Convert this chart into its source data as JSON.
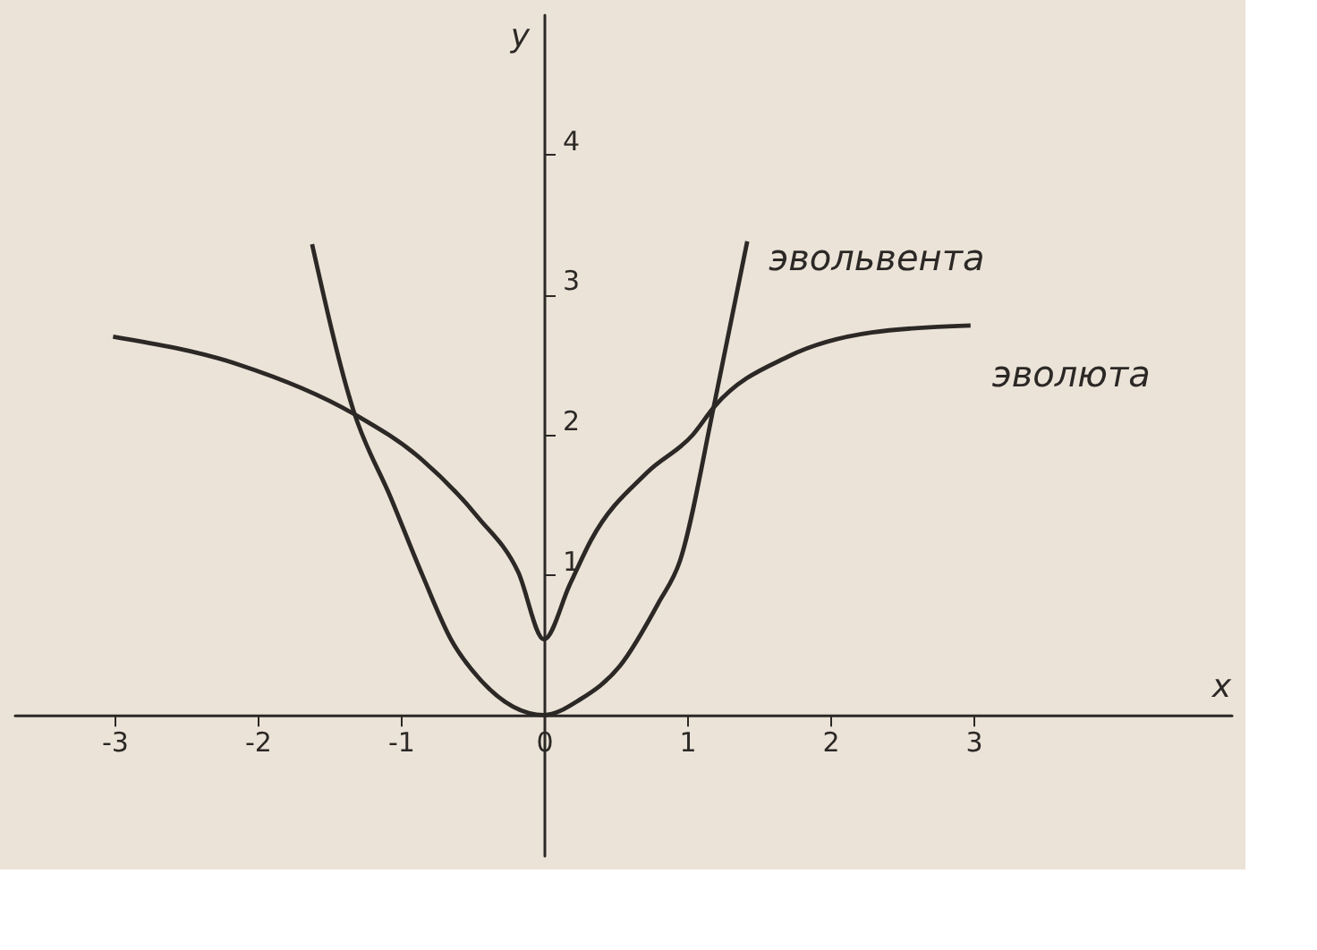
{
  "chart_data": {
    "type": "line",
    "xlabel": "x",
    "ylabel": "y",
    "xlim": [
      -3.7,
      4.8
    ],
    "ylim": [
      -1,
      5
    ],
    "xticks": [
      -3,
      -2,
      -1,
      0,
      1,
      2,
      3
    ],
    "yticks": [
      1,
      2,
      3,
      4
    ],
    "marker": "none",
    "line_style": "solid",
    "series": [
      {
        "name": "эвольвента",
        "color": "#2b2826",
        "x": [
          -1.62,
          -1.33,
          -1.07,
          -0.85,
          -0.65,
          -0.46,
          0,
          0.25,
          0.53,
          0.8,
          0.95,
          1.19,
          1.42
        ],
        "values": [
          3.36,
          2.17,
          1.55,
          1.0,
          0.54,
          0.27,
          0,
          0.11,
          0.35,
          0.8,
          1.1,
          2.22,
          3.38
        ]
      },
      {
        "name": "эволюта",
        "color": "#2b2826",
        "x": [
          -3.01,
          -2.13,
          -1.33,
          -0.85,
          -0.46,
          -0.18,
          0,
          0.18,
          0.33,
          0.72,
          1.04,
          1.19,
          1.71,
          2.29,
          2.98
        ],
        "values": [
          2.7,
          2.5,
          2.15,
          1.82,
          1.41,
          1.02,
          0.54,
          0.93,
          1.25,
          1.73,
          2.0,
          2.2,
          2.56,
          2.73,
          2.78
        ]
      }
    ]
  }
}
